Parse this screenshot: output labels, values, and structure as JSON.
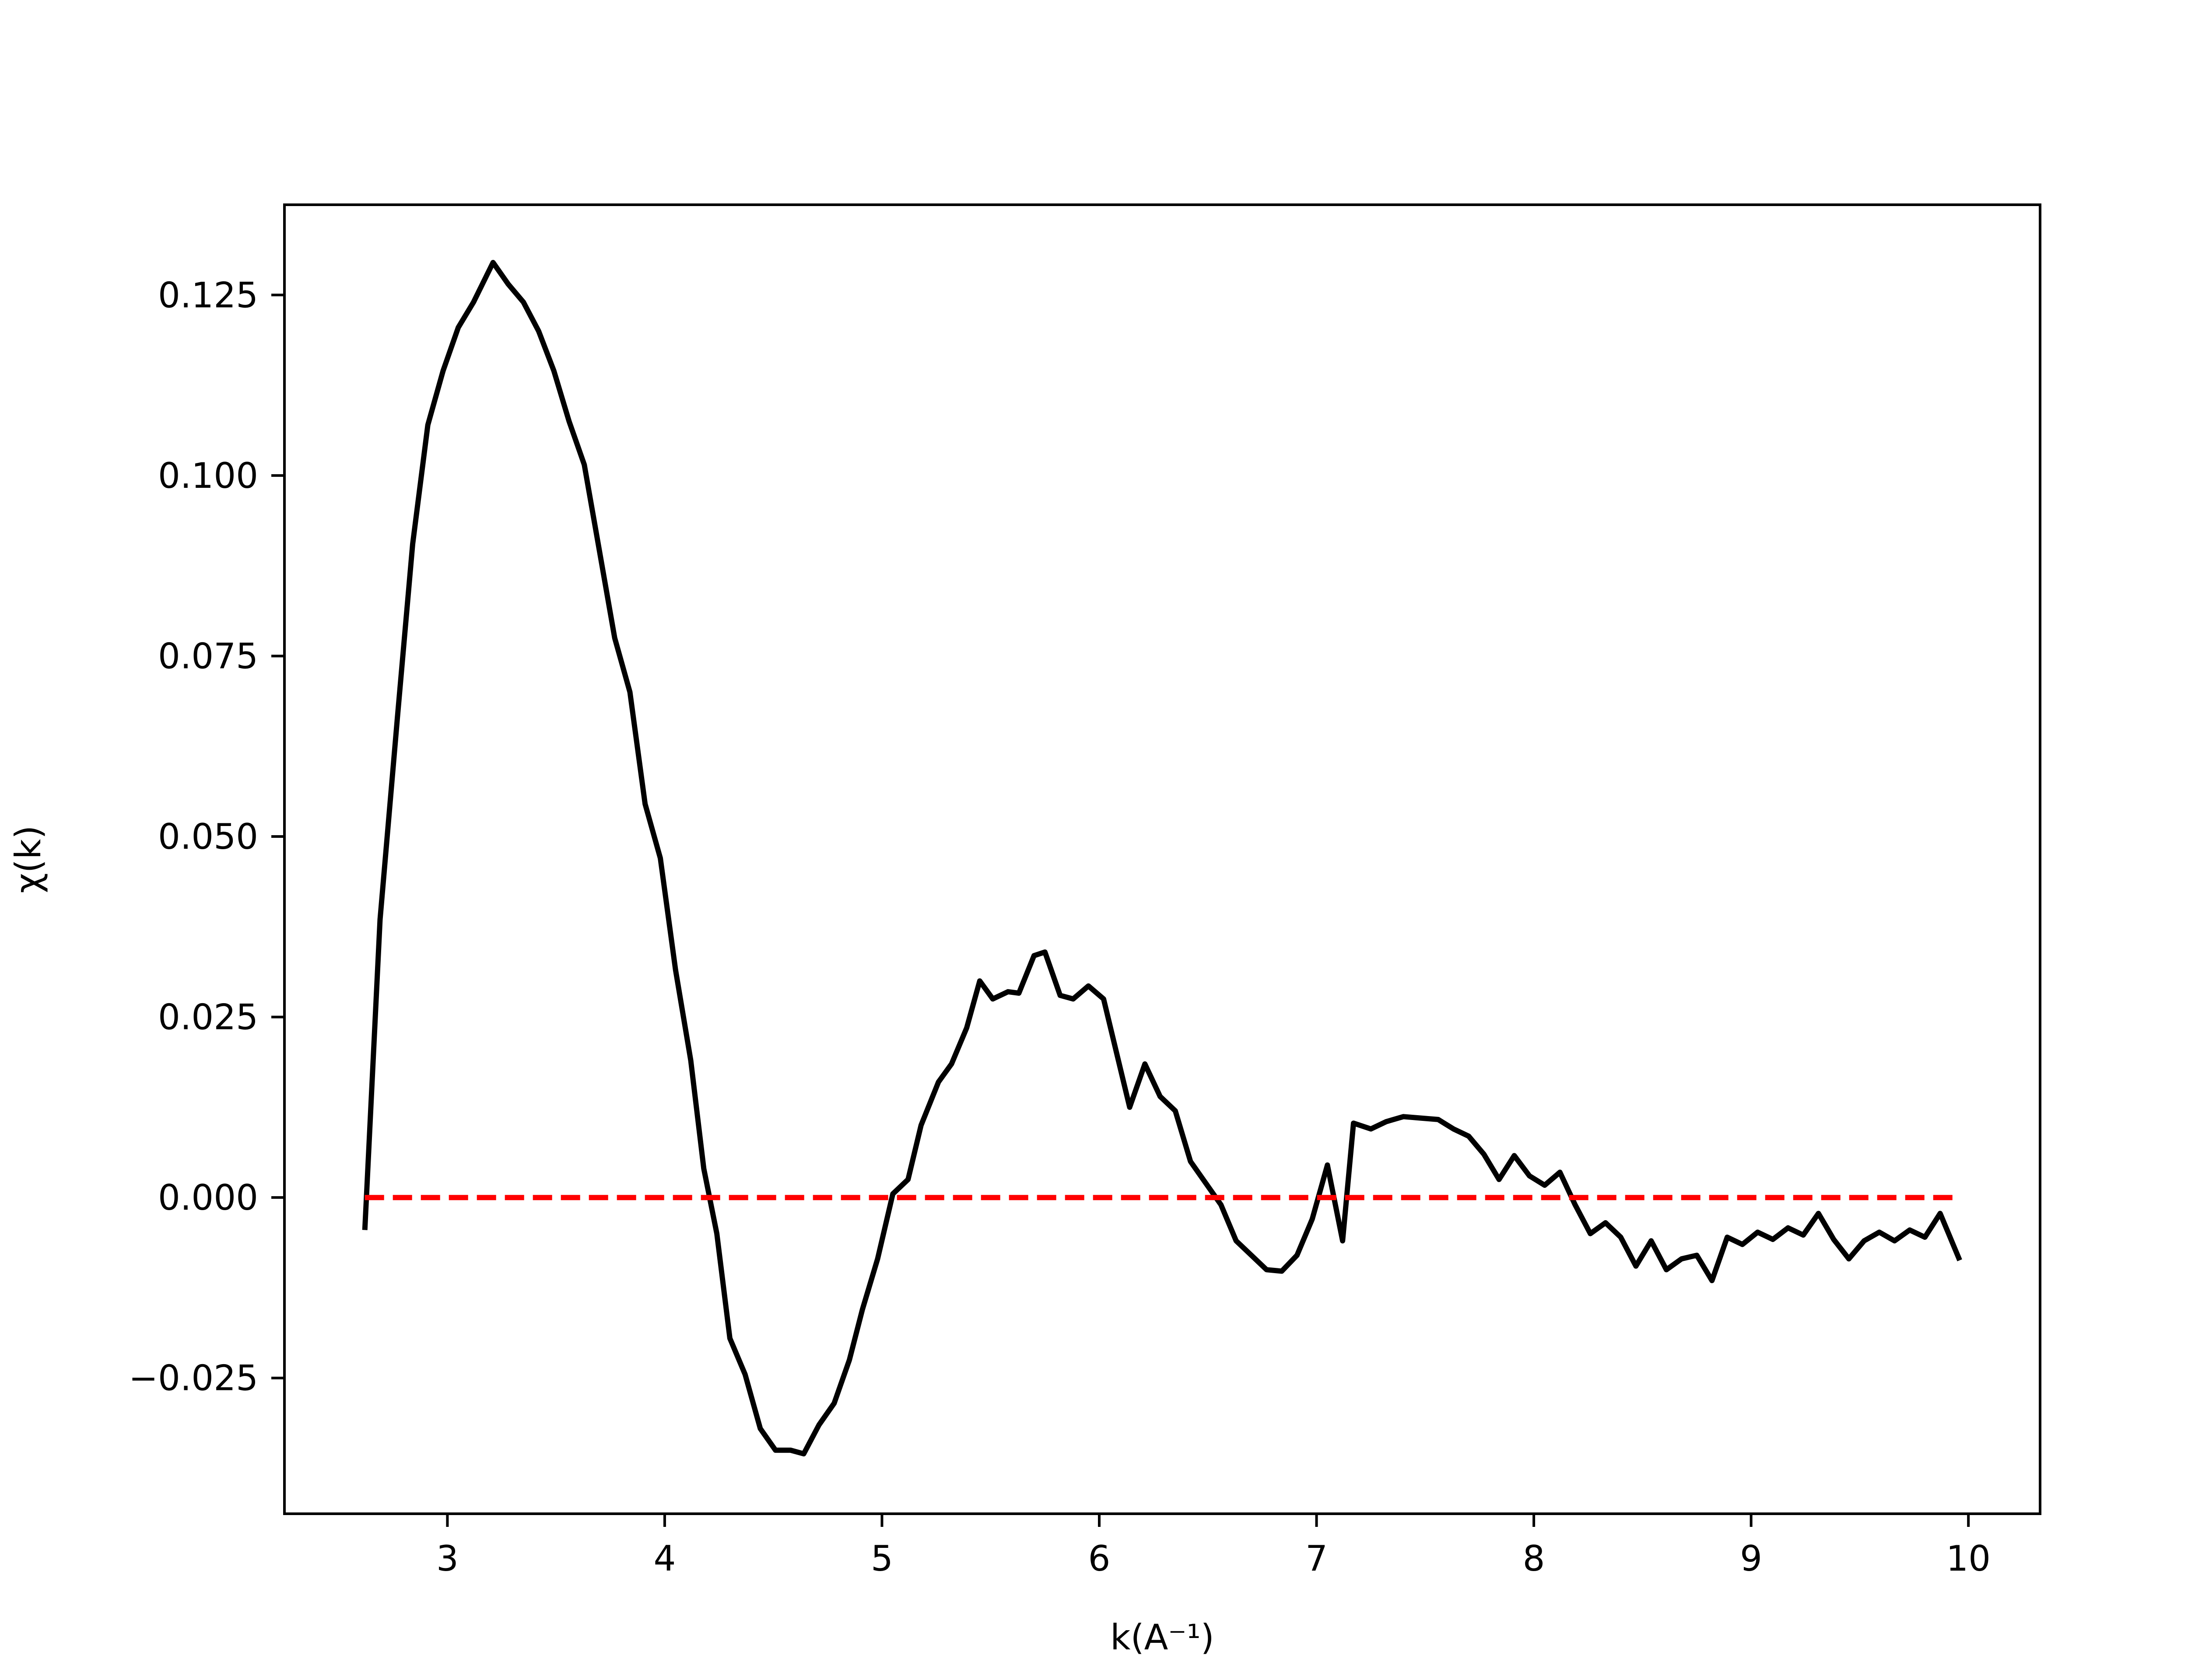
{
  "chart_data": {
    "type": "line",
    "title": "",
    "xlabel": "k(A⁻¹)",
    "ylabel": "χ(k)",
    "xlim": [
      2.25,
      10.33
    ],
    "ylim": [
      -0.0438,
      0.1375
    ],
    "xticks": [
      3,
      4,
      5,
      6,
      7,
      8,
      9,
      10
    ],
    "xtick_labels": [
      "3",
      "4",
      "5",
      "6",
      "7",
      "8",
      "9",
      "10"
    ],
    "yticks": [
      -0.025,
      0.0,
      0.025,
      0.05,
      0.075,
      0.1,
      0.125
    ],
    "ytick_labels": [
      "−0.025",
      "0.000",
      "0.025",
      "0.050",
      "0.075",
      "0.100",
      "0.125"
    ],
    "grid": false,
    "legend": "none",
    "series": [
      {
        "color": "#000000",
        "style": "solid",
        "x": [
          2.62,
          2.69,
          2.77,
          2.84,
          2.91,
          2.98,
          3.05,
          3.12,
          3.21,
          3.28,
          3.35,
          3.42,
          3.49,
          3.56,
          3.63,
          3.7,
          3.77,
          3.84,
          3.91,
          3.98,
          4.05,
          4.12,
          4.18,
          4.24,
          4.3,
          4.37,
          4.44,
          4.51,
          4.58,
          4.64,
          4.71,
          4.78,
          4.85,
          4.91,
          4.98,
          5.05,
          5.12,
          5.18,
          5.26,
          5.32,
          5.39,
          5.45,
          5.51,
          5.58,
          5.63,
          5.7,
          5.75,
          5.82,
          5.88,
          5.95,
          6.02,
          6.08,
          6.14,
          6.21,
          6.28,
          6.35,
          6.42,
          6.49,
          6.56,
          6.63,
          6.7,
          6.77,
          6.84,
          6.91,
          6.98,
          7.05,
          7.12,
          7.17,
          7.25,
          7.32,
          7.4,
          7.48,
          7.56,
          7.63,
          7.7,
          7.77,
          7.84,
          7.91,
          7.98,
          8.05,
          8.12,
          8.19,
          8.26,
          8.33,
          8.4,
          8.47,
          8.54,
          8.61,
          8.68,
          8.75,
          8.82,
          8.89,
          8.96,
          9.03,
          9.1,
          9.17,
          9.24,
          9.31,
          9.38,
          9.45,
          9.52,
          9.59,
          9.66,
          9.73,
          9.8,
          9.87,
          9.96
        ],
        "y": [
          -0.0045,
          0.0385,
          0.0665,
          0.0905,
          0.107,
          0.1145,
          0.1205,
          0.124,
          0.1295,
          0.1265,
          0.124,
          0.12,
          0.1145,
          0.1075,
          0.1015,
          0.0895,
          0.0775,
          0.07,
          0.0545,
          0.047,
          0.0315,
          0.019,
          0.004,
          -0.005,
          -0.0195,
          -0.0245,
          -0.032,
          -0.035,
          -0.035,
          -0.0355,
          -0.0315,
          -0.0285,
          -0.0225,
          -0.0155,
          -0.0085,
          0.0005,
          0.0025,
          0.01,
          0.016,
          0.0185,
          0.0235,
          0.03,
          0.0275,
          0.0285,
          0.0283,
          0.0335,
          0.034,
          0.028,
          0.0275,
          0.0293,
          0.0275,
          0.02,
          0.0125,
          0.0185,
          0.014,
          0.012,
          0.005,
          0.002,
          -0.001,
          -0.006,
          -0.008,
          -0.01,
          -0.0102,
          -0.008,
          -0.003,
          0.0045,
          -0.006,
          0.0103,
          0.0095,
          0.0105,
          0.0112,
          0.011,
          0.0108,
          0.0095,
          0.0085,
          0.006,
          0.0025,
          0.0058,
          0.003,
          0.0017,
          0.0035,
          -0.001,
          -0.005,
          -0.0035,
          -0.0055,
          -0.0095,
          -0.006,
          -0.01,
          -0.0085,
          -0.008,
          -0.0115,
          -0.0055,
          -0.0065,
          -0.0048,
          -0.0058,
          -0.0042,
          -0.0052,
          -0.0022,
          -0.0058,
          -0.0085,
          -0.006,
          -0.0048,
          -0.006,
          -0.0045,
          -0.0055,
          -0.0022,
          -0.0087
        ]
      },
      {
        "color": "#ff0000",
        "style": "dashed",
        "x": [
          2.62,
          9.96
        ],
        "y": [
          0.0,
          0.0
        ]
      }
    ]
  }
}
